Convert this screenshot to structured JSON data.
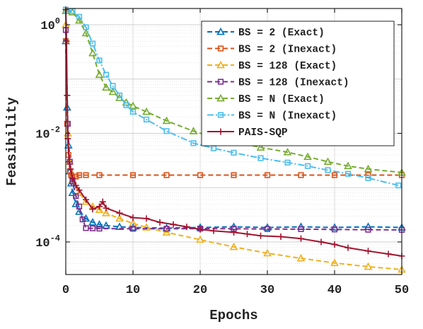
{
  "chart_data": {
    "type": "line",
    "title": "",
    "xlabel": "Epochs",
    "ylabel": "Feasibility",
    "xlim": [
      0,
      50
    ],
    "ylim_log10": [
      -4.6,
      0.3
    ],
    "yscale": "log",
    "grid": true,
    "legend_position": "top-right",
    "x_ticks": [
      0,
      10,
      20,
      30,
      40,
      50
    ],
    "x_tick_labels": [
      "0",
      "10",
      "20",
      "30",
      "40",
      "50"
    ],
    "y_ticks": [
      {
        "base": "10",
        "exp": "0",
        "value": 1
      },
      {
        "base": "10",
        "exp": "-2",
        "value": 0.01
      },
      {
        "base": "10",
        "exp": "-4",
        "value": 0.0001
      }
    ],
    "series": [
      {
        "name": "BS = 2 (Exact)",
        "color": "#0072bd",
        "marker": "triangle",
        "dash": "dash",
        "x": [
          0,
          0.2,
          0.4,
          0.6,
          0.8,
          1,
          1.5,
          2,
          3,
          4,
          5,
          6,
          8,
          10,
          15,
          20,
          25,
          30,
          35,
          40,
          45,
          50
        ],
        "y": [
          0.5,
          0.03,
          0.006,
          0.002,
          0.0012,
          0.0008,
          0.0005,
          0.00036,
          0.00027,
          0.00023,
          0.00021,
          0.0002,
          0.00019,
          0.000185,
          0.00018,
          0.000185,
          0.00019,
          0.000185,
          0.00019,
          0.000185,
          0.00019,
          0.000185
        ]
      },
      {
        "name": "BS = 2 (Inexact)",
        "color": "#d95319",
        "marker": "square",
        "dash": "dash",
        "x": [
          0,
          0.2,
          0.4,
          0.6,
          0.8,
          1,
          1.5,
          2,
          3,
          5,
          10,
          15,
          20,
          25,
          30,
          35,
          40,
          45,
          50
        ],
        "y": [
          0.5,
          0.015,
          0.004,
          0.002,
          0.0017,
          0.0016,
          0.0016,
          0.0017,
          0.0017,
          0.0017,
          0.0017,
          0.0017,
          0.0017,
          0.0017,
          0.0017,
          0.0017,
          0.0017,
          0.0017,
          0.0017
        ]
      },
      {
        "name": "BS = 128 (Exact)",
        "color": "#edb120",
        "marker": "triangle",
        "dash": "dash",
        "x": [
          0,
          0.3,
          0.6,
          1,
          2,
          3,
          4,
          5,
          6,
          8,
          10,
          12,
          15,
          20,
          25,
          30,
          35,
          40,
          45,
          50
        ],
        "y": [
          1.0,
          0.01,
          0.003,
          0.0014,
          0.0008,
          0.00055,
          0.00045,
          0.00039,
          0.00034,
          0.00027,
          0.00022,
          0.000185,
          0.00015,
          0.00011,
          8.1e-05,
          6.2e-05,
          5e-05,
          4.1e-05,
          3.5e-05,
          3.1e-05
        ]
      },
      {
        "name": "BS = 128 (Inexact)",
        "color": "#7e2f8e",
        "marker": "square",
        "dash": "dash",
        "x": [
          0,
          0.3,
          0.6,
          1,
          1.5,
          2,
          2.5,
          3,
          4,
          5,
          10,
          15,
          20,
          25,
          30,
          35,
          40,
          45,
          50
        ],
        "y": [
          0.8,
          0.015,
          0.003,
          0.0013,
          0.0007,
          0.00045,
          0.00026,
          0.00018,
          0.000178,
          0.000176,
          0.000175,
          0.000175,
          0.000176,
          0.000175,
          0.000173,
          0.000172,
          0.00017,
          0.000168,
          0.000167
        ]
      },
      {
        "name": "BS = N (Exact)",
        "color": "#77ac30",
        "marker": "triangle",
        "dash": "dash",
        "x": [
          0,
          1,
          2,
          3,
          4,
          5,
          6,
          7,
          8,
          9,
          10,
          12,
          15,
          19,
          22,
          25,
          29,
          33,
          36,
          39,
          42,
          45,
          50
        ],
        "y": [
          1.8,
          1.7,
          1.2,
          0.7,
          0.3,
          0.12,
          0.07,
          0.058,
          0.045,
          0.037,
          0.032,
          0.025,
          0.017,
          0.011,
          0.0085,
          0.007,
          0.0055,
          0.0045,
          0.0037,
          0.003,
          0.0025,
          0.0022,
          0.0019
        ]
      },
      {
        "name": "BS = N (Inexact)",
        "color": "#4dbeee",
        "marker": "square",
        "dash": "dashdot",
        "x": [
          0,
          1,
          2,
          3,
          4,
          5,
          6,
          7,
          8,
          9,
          10,
          12,
          15,
          19,
          22,
          25,
          29,
          33,
          36,
          39,
          42,
          45,
          49.5
        ],
        "y": [
          1.9,
          1.8,
          1.4,
          0.9,
          0.45,
          0.22,
          0.12,
          0.075,
          0.05,
          0.033,
          0.025,
          0.018,
          0.011,
          0.0066,
          0.0053,
          0.0044,
          0.0035,
          0.0029,
          0.0025,
          0.0021,
          0.0018,
          0.0015,
          0.0011
        ]
      },
      {
        "name": "PAIS-SQP",
        "color": "#a2142f",
        "marker": "plus",
        "dash": "solid",
        "x": [
          0,
          0.1,
          0.2,
          0.3,
          0.5,
          0.7,
          1,
          1.5,
          2,
          3,
          4,
          5,
          5.5,
          6,
          8,
          10,
          12,
          14,
          16,
          18,
          20,
          22,
          25,
          27,
          29,
          32,
          35,
          38,
          40,
          42,
          45,
          48,
          50
        ],
        "y": [
          1.9,
          0.5,
          0.05,
          0.008,
          0.003,
          0.0022,
          0.0015,
          0.0011,
          0.0009,
          0.0006,
          0.0004,
          0.00045,
          0.00055,
          0.00042,
          0.00034,
          0.00028,
          0.00027,
          0.00023,
          0.00021,
          0.00019,
          0.00017,
          0.00016,
          0.00015,
          0.00014,
          0.00013,
          0.000125,
          0.000115,
          0.0001,
          9e-05,
          7.8e-05,
          6.8e-05,
          6e-05,
          5.5e-05
        ]
      }
    ]
  }
}
